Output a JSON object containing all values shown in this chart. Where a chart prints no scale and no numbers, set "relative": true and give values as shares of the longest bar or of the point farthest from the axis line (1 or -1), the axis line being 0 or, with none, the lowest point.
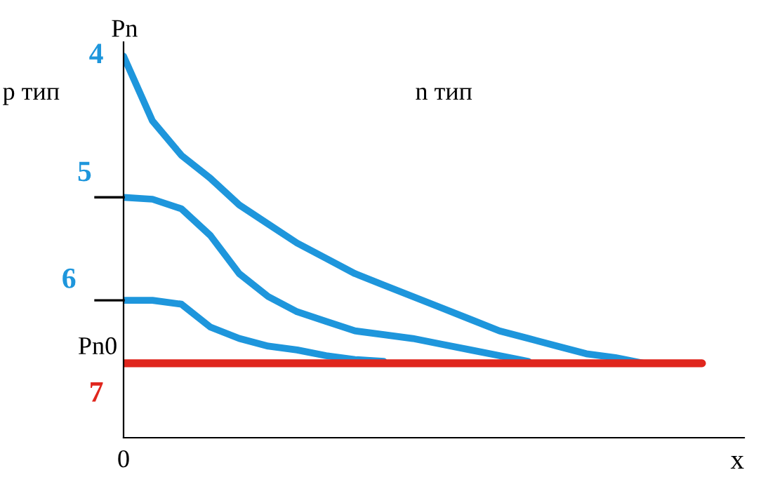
{
  "chart_data": {
    "type": "line",
    "relative": true,
    "xlabel": "x",
    "ylabel": "Pn",
    "legend": false,
    "marker": "none",
    "line_style": "solid",
    "annotations": [
      "p тип",
      "n тип",
      "Pn0",
      "0"
    ],
    "categories": [
      null,
      null,
      null,
      null,
      null,
      null,
      null,
      null,
      null,
      null,
      null,
      null,
      null,
      null,
      null,
      null,
      null,
      null,
      null,
      null,
      null
    ],
    "series": [
      {
        "name": "4",
        "color": "#1e96dc",
        "values": [
          1.0,
          0.83,
          0.74,
          0.68,
          0.61,
          0.56,
          0.51,
          0.47,
          0.43,
          0.4,
          0.37,
          0.34,
          0.31,
          0.28,
          0.26,
          0.24,
          0.22,
          0.21,
          0.195,
          null,
          null
        ]
      },
      {
        "name": "5",
        "color": "#1e96dc",
        "values": [
          0.63,
          0.625,
          0.6,
          0.53,
          0.43,
          0.37,
          0.33,
          0.305,
          0.28,
          0.27,
          0.26,
          0.245,
          0.23,
          0.215,
          0.2,
          null,
          null,
          null,
          null,
          null,
          null
        ]
      },
      {
        "name": "6",
        "color": "#1e96dc",
        "values": [
          0.36,
          0.36,
          0.35,
          0.29,
          0.26,
          0.24,
          0.23,
          0.215,
          0.205,
          0.2,
          null,
          null,
          null,
          null,
          null,
          null,
          null,
          null,
          null,
          null,
          null
        ]
      },
      {
        "name": "7",
        "color": "#e0261d",
        "values": [
          0.195,
          0.195,
          0.195,
          0.195,
          0.195,
          0.195,
          0.195,
          0.195,
          0.195,
          0.195,
          0.195,
          0.195,
          0.195,
          0.195,
          0.195,
          0.195,
          0.195,
          0.195,
          0.195,
          0.195,
          0.195
        ]
      }
    ]
  }
}
